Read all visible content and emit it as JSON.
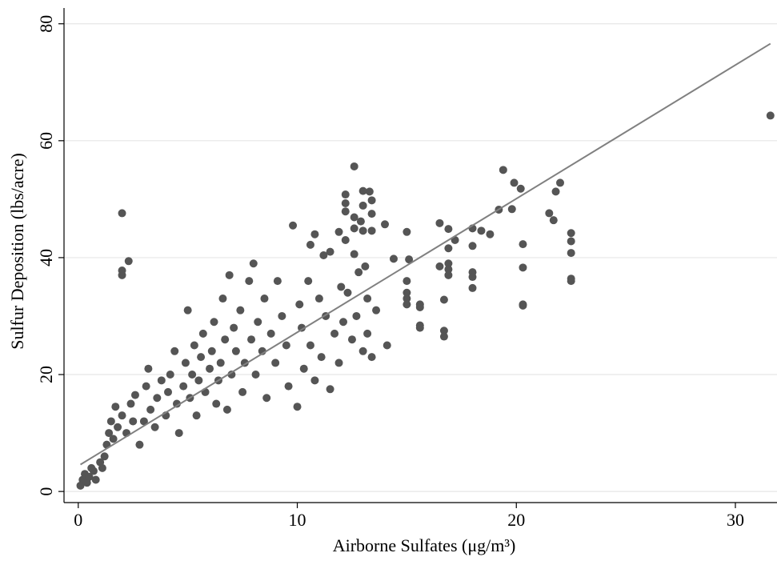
{
  "chart_data": {
    "type": "scatter",
    "x_label": "Airborne Sulfates (μg/m³)",
    "y_label": "Sulfur Deposition (lbs/acre)",
    "xlim": [
      -0.65,
      31.9
    ],
    "ylim": [
      -1.9,
      82.7
    ],
    "xticks": [
      0,
      10,
      20,
      30
    ],
    "yticks": [
      0,
      20,
      40,
      60,
      80
    ],
    "grid": true,
    "points": {
      "color": "#555555",
      "x": [
        31.6,
        2.0,
        2.0,
        2.0,
        2.3,
        12.6,
        19.4,
        19.9,
        20.2,
        22.0,
        21.8,
        21.5,
        21.7,
        22.5,
        22.5,
        22.5,
        22.5,
        22.5,
        20.3,
        20.3,
        20.3,
        20.3,
        19.8,
        19.2,
        18.8,
        18.4,
        18.0,
        18.0,
        18.0,
        18.0,
        18.0,
        17.2,
        16.9,
        16.9,
        16.5,
        16.9,
        16.9,
        16.9,
        16.5,
        16.7,
        16.7,
        16.7,
        15.6,
        15.6,
        15.6,
        15.6,
        15.0,
        15.1,
        15.0,
        15.0,
        15.0,
        15.0,
        14.4,
        14.0,
        14.1,
        13.6,
        13.3,
        13.0,
        13.4,
        13.0,
        13.4,
        12.9,
        13.0,
        13.4,
        12.2,
        12.2,
        12.6,
        12.2,
        12.6,
        11.9,
        12.6,
        12.2,
        11.2,
        10.8,
        10.6,
        11.5,
        12.8,
        12.0,
        13.1,
        13.2,
        0.1,
        0.2,
        0.3,
        0.4,
        0.5,
        0.6,
        0.7,
        0.8,
        1.0,
        1.1,
        1.2,
        1.3,
        1.4,
        1.5,
        1.6,
        1.7,
        1.8,
        2.0,
        2.2,
        2.4,
        2.5,
        2.6,
        2.8,
        3.0,
        3.1,
        3.2,
        3.3,
        3.5,
        3.6,
        3.8,
        4.0,
        4.1,
        4.2,
        4.4,
        4.5,
        4.6,
        4.8,
        4.9,
        5.0,
        5.1,
        5.2,
        5.3,
        5.4,
        5.5,
        5.6,
        5.7,
        5.8,
        6.0,
        6.1,
        6.2,
        6.3,
        6.4,
        6.5,
        6.6,
        6.7,
        6.8,
        6.9,
        7.0,
        7.1,
        7.2,
        7.4,
        7.5,
        7.6,
        7.8,
        7.9,
        8.0,
        8.1,
        8.2,
        8.4,
        8.5,
        8.6,
        8.8,
        9.0,
        9.1,
        9.3,
        9.5,
        9.6,
        9.8,
        10.0,
        10.1,
        10.2,
        10.3,
        10.5,
        10.6,
        10.8,
        11.0,
        11.1,
        11.3,
        11.5,
        11.7,
        11.9,
        12.1,
        12.3,
        12.5,
        12.7,
        13.0,
        13.2,
        13.4
      ],
      "y": [
        64.3,
        47.6,
        37.0,
        37.8,
        39.4,
        55.6,
        55.0,
        52.8,
        51.8,
        52.8,
        51.3,
        47.6,
        46.4,
        44.2,
        42.8,
        40.8,
        36.4,
        36.0,
        42.3,
        38.3,
        32.0,
        31.8,
        48.3,
        48.2,
        44.0,
        44.6,
        45.0,
        42.0,
        37.5,
        36.7,
        34.8,
        43.0,
        44.9,
        41.6,
        45.9,
        39.0,
        38.0,
        37.0,
        38.5,
        32.8,
        27.5,
        26.5,
        32.0,
        31.5,
        28.4,
        28.0,
        44.4,
        39.7,
        36.0,
        34.0,
        33.0,
        32.0,
        39.8,
        45.7,
        25.0,
        31.0,
        51.3,
        51.4,
        49.8,
        48.9,
        47.5,
        46.2,
        44.6,
        44.6,
        50.8,
        49.3,
        46.9,
        47.9,
        45.0,
        44.4,
        40.6,
        43.0,
        40.4,
        44.0,
        42.2,
        41.0,
        37.5,
        35.0,
        38.5,
        33.0,
        1.0,
        2.0,
        3.0,
        1.5,
        2.5,
        4.0,
        3.5,
        2.0,
        5.0,
        4.0,
        6.0,
        8.0,
        10.0,
        12.0,
        9.0,
        14.5,
        11.0,
        13.0,
        10.0,
        15.0,
        12.0,
        16.5,
        8.0,
        12.0,
        18.0,
        21.0,
        14.0,
        11.0,
        16.0,
        19.0,
        13.0,
        17.0,
        20.0,
        24.0,
        15.0,
        10.0,
        18.0,
        22.0,
        31.0,
        16.0,
        20.0,
        25.0,
        13.0,
        19.0,
        23.0,
        27.0,
        17.0,
        21.0,
        24.0,
        29.0,
        15.0,
        19.0,
        22.0,
        33.0,
        26.0,
        14.0,
        37.0,
        20.0,
        28.0,
        24.0,
        31.0,
        17.0,
        22.0,
        36.0,
        26.0,
        39.0,
        20.0,
        29.0,
        24.0,
        33.0,
        16.0,
        27.0,
        22.0,
        36.0,
        30.0,
        25.0,
        18.0,
        45.5,
        14.5,
        32.0,
        28.0,
        21.0,
        36.0,
        25.0,
        19.0,
        33.0,
        23.0,
        30.0,
        17.5,
        27.0,
        22.0,
        29.0,
        34.0,
        26.0,
        30.0,
        24.0,
        27.0,
        23.0
      ]
    },
    "fit_line": {
      "color": "#808080",
      "x": [
        0.1,
        31.6
      ],
      "y": [
        4.6,
        76.6
      ]
    }
  }
}
